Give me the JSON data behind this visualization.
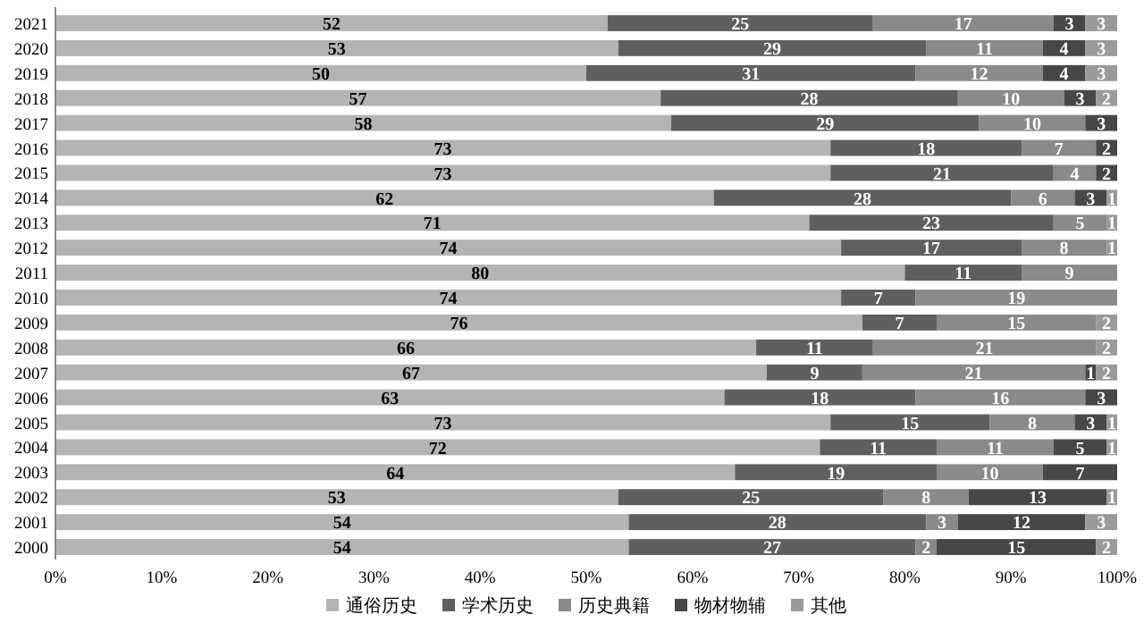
{
  "chart_data": {
    "type": "bar",
    "orientation": "horizontal",
    "stacked": true,
    "legend": "bottom",
    "grid": false,
    "categories": [
      "2021",
      "2020",
      "2019",
      "2018",
      "2017",
      "2016",
      "2015",
      "2014",
      "2013",
      "2012",
      "2011",
      "2010",
      "2009",
      "2008",
      "2007",
      "2006",
      "2005",
      "2004",
      "2003",
      "2002",
      "2001",
      "2000"
    ],
    "xlim": [
      0,
      100
    ],
    "xticks": [
      {
        "value": 0,
        "label": "0%"
      },
      {
        "value": 10,
        "label": "10%"
      },
      {
        "value": 20,
        "label": "20%"
      },
      {
        "value": 30,
        "label": "30%"
      },
      {
        "value": 40,
        "label": "40%"
      },
      {
        "value": 50,
        "label": "50%"
      },
      {
        "value": 60,
        "label": "60%"
      },
      {
        "value": 70,
        "label": "70%"
      },
      {
        "value": 80,
        "label": "80%"
      },
      {
        "value": 90,
        "label": "90%"
      },
      {
        "value": 100,
        "label": "100%"
      }
    ],
    "series": [
      {
        "name": "通俗历史",
        "color": "#b4b4b4",
        "values": [
          52,
          53,
          50,
          57,
          58,
          73,
          73,
          62,
          71,
          74,
          80,
          74,
          76,
          66,
          67,
          63,
          73,
          72,
          64,
          53,
          54,
          54
        ],
        "value_labels": [
          "52",
          "53",
          "50",
          "57",
          "58",
          "73",
          "73",
          "62",
          "71",
          "74",
          "80",
          "74",
          "76",
          "66",
          "67",
          "63",
          "73",
          "72",
          "64",
          "53",
          "54",
          "54"
        ]
      },
      {
        "name": "学术历史",
        "color": "#5f5f5f",
        "values": [
          25,
          29,
          31,
          28,
          29,
          18,
          21,
          28,
          23,
          17,
          11,
          7,
          7,
          11,
          9,
          18,
          15,
          11,
          19,
          25,
          28,
          27
        ],
        "value_labels": [
          "25",
          "29",
          "31",
          "28",
          "29",
          "18",
          "21",
          "28",
          "23",
          "17",
          "11",
          "7",
          "7",
          "11",
          "9",
          "18",
          "15",
          "11",
          "19",
          "25",
          "28",
          "27"
        ]
      },
      {
        "name": "历史典籍",
        "color": "#8a8a8a",
        "values": [
          17,
          11,
          12,
          10,
          10,
          7,
          4,
          6,
          5,
          8,
          9,
          19,
          15,
          21,
          21,
          16,
          8,
          11,
          10,
          8,
          3,
          2
        ],
        "value_labels": [
          "17",
          "11",
          "12",
          "10",
          "10",
          "7",
          "4",
          "6",
          "5",
          "8",
          "9",
          "19",
          "15",
          "21",
          "21",
          "16",
          "8",
          "11",
          "10",
          "8",
          "3",
          "2"
        ]
      },
      {
        "name": "物材物辅",
        "color": "#474747",
        "values": [
          3,
          4,
          4,
          3,
          3,
          2,
          2,
          3,
          0,
          0,
          0,
          0,
          0,
          0,
          1,
          3,
          3,
          5,
          7,
          13,
          12,
          15
        ],
        "value_labels": [
          "3",
          "4",
          "4",
          "3",
          "3",
          "2",
          "2",
          "3",
          null,
          null,
          null,
          null,
          null,
          null,
          "1",
          "3",
          "3",
          "5",
          "7",
          "13",
          "12",
          "15"
        ]
      },
      {
        "name": "其他",
        "color": "#9a9a9a",
        "values": [
          3,
          3,
          3,
          2,
          0,
          0,
          0,
          1,
          1,
          1,
          0,
          0,
          2,
          2,
          2,
          0,
          1,
          1,
          0,
          1,
          3,
          2
        ],
        "value_labels": [
          "3",
          "3",
          "3",
          "2",
          null,
          null,
          null,
          "1",
          "1",
          "1",
          null,
          null,
          "2",
          "2",
          "2",
          null,
          "1",
          "1",
          null,
          "1",
          "3",
          "2"
        ]
      }
    ]
  }
}
